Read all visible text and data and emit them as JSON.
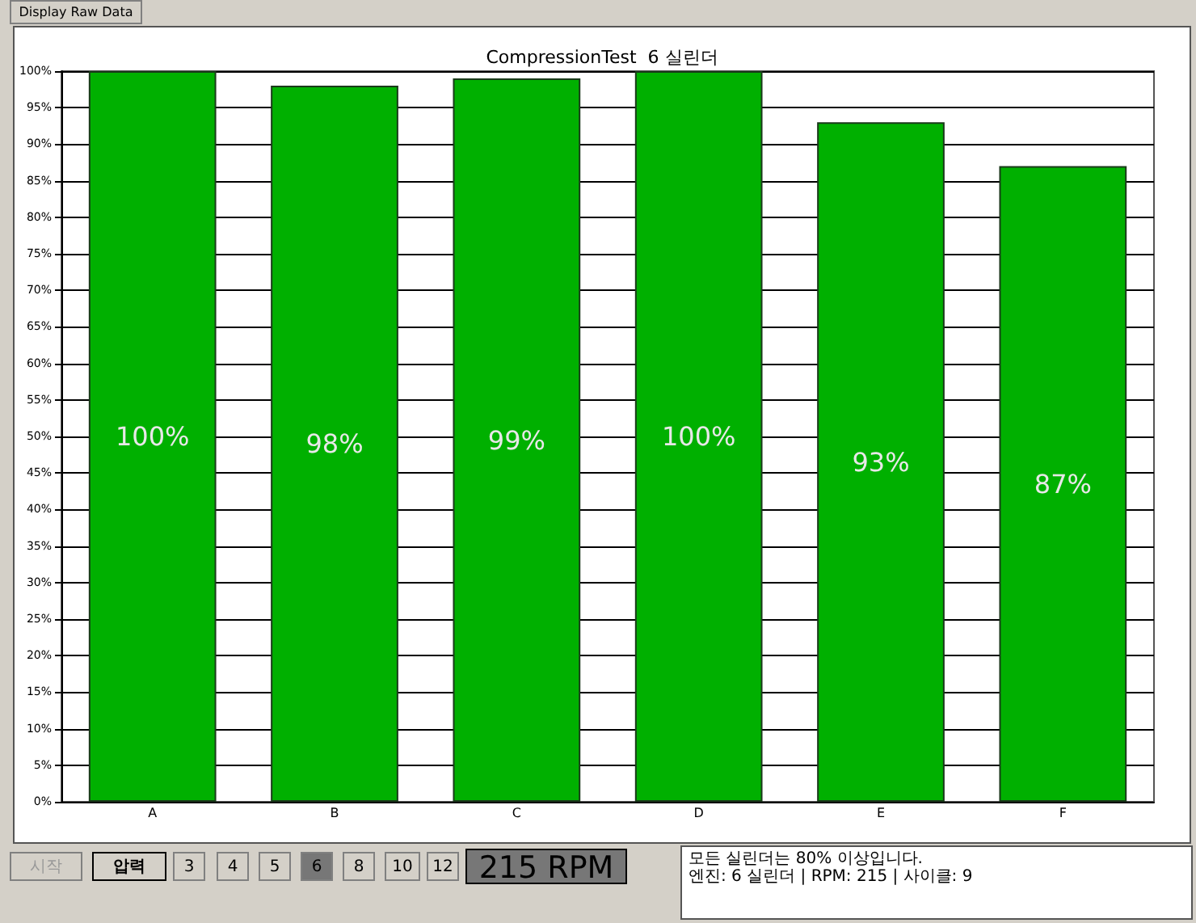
{
  "chart_data": {
    "type": "bar",
    "title": "CompressionTest  6 실린더",
    "categories": [
      "A",
      "B",
      "C",
      "D",
      "E",
      "F"
    ],
    "values": [
      100,
      98,
      99,
      100,
      93,
      87
    ],
    "value_labels": [
      "100%",
      "98%",
      "99%",
      "100%",
      "93%",
      "87%"
    ],
    "color": "#00b000",
    "ylim": [
      0,
      100
    ],
    "yticks": [
      {
        "value": 0,
        "label": "0%"
      },
      {
        "value": 5,
        "label": "5%"
      },
      {
        "value": 10,
        "label": "10%"
      },
      {
        "value": 15,
        "label": "15%"
      },
      {
        "value": 20,
        "label": "20%"
      },
      {
        "value": 25,
        "label": "25%"
      },
      {
        "value": 30,
        "label": "30%"
      },
      {
        "value": 35,
        "label": "35%"
      },
      {
        "value": 40,
        "label": "40%"
      },
      {
        "value": 45,
        "label": "45%"
      },
      {
        "value": 50,
        "label": "50%"
      },
      {
        "value": 55,
        "label": "55%"
      },
      {
        "value": 60,
        "label": "60%"
      },
      {
        "value": 65,
        "label": "65%"
      },
      {
        "value": 70,
        "label": "70%"
      },
      {
        "value": 75,
        "label": "75%"
      },
      {
        "value": 80,
        "label": "80%"
      },
      {
        "value": 85,
        "label": "85%"
      },
      {
        "value": 90,
        "label": "90%"
      },
      {
        "value": 95,
        "label": "95%"
      },
      {
        "value": 100,
        "label": "100%"
      }
    ],
    "grid": "y",
    "annotations": [
      "Display Raw Data",
      "시작",
      "압력",
      "3",
      "4",
      "5",
      "6",
      "8",
      "10",
      "12",
      "215 RPM",
      "모든 실린더는 80% 이상입니다.",
      "엔진: 6 실린더 | RPM: 215 | 사이클: 9"
    ]
  }
}
